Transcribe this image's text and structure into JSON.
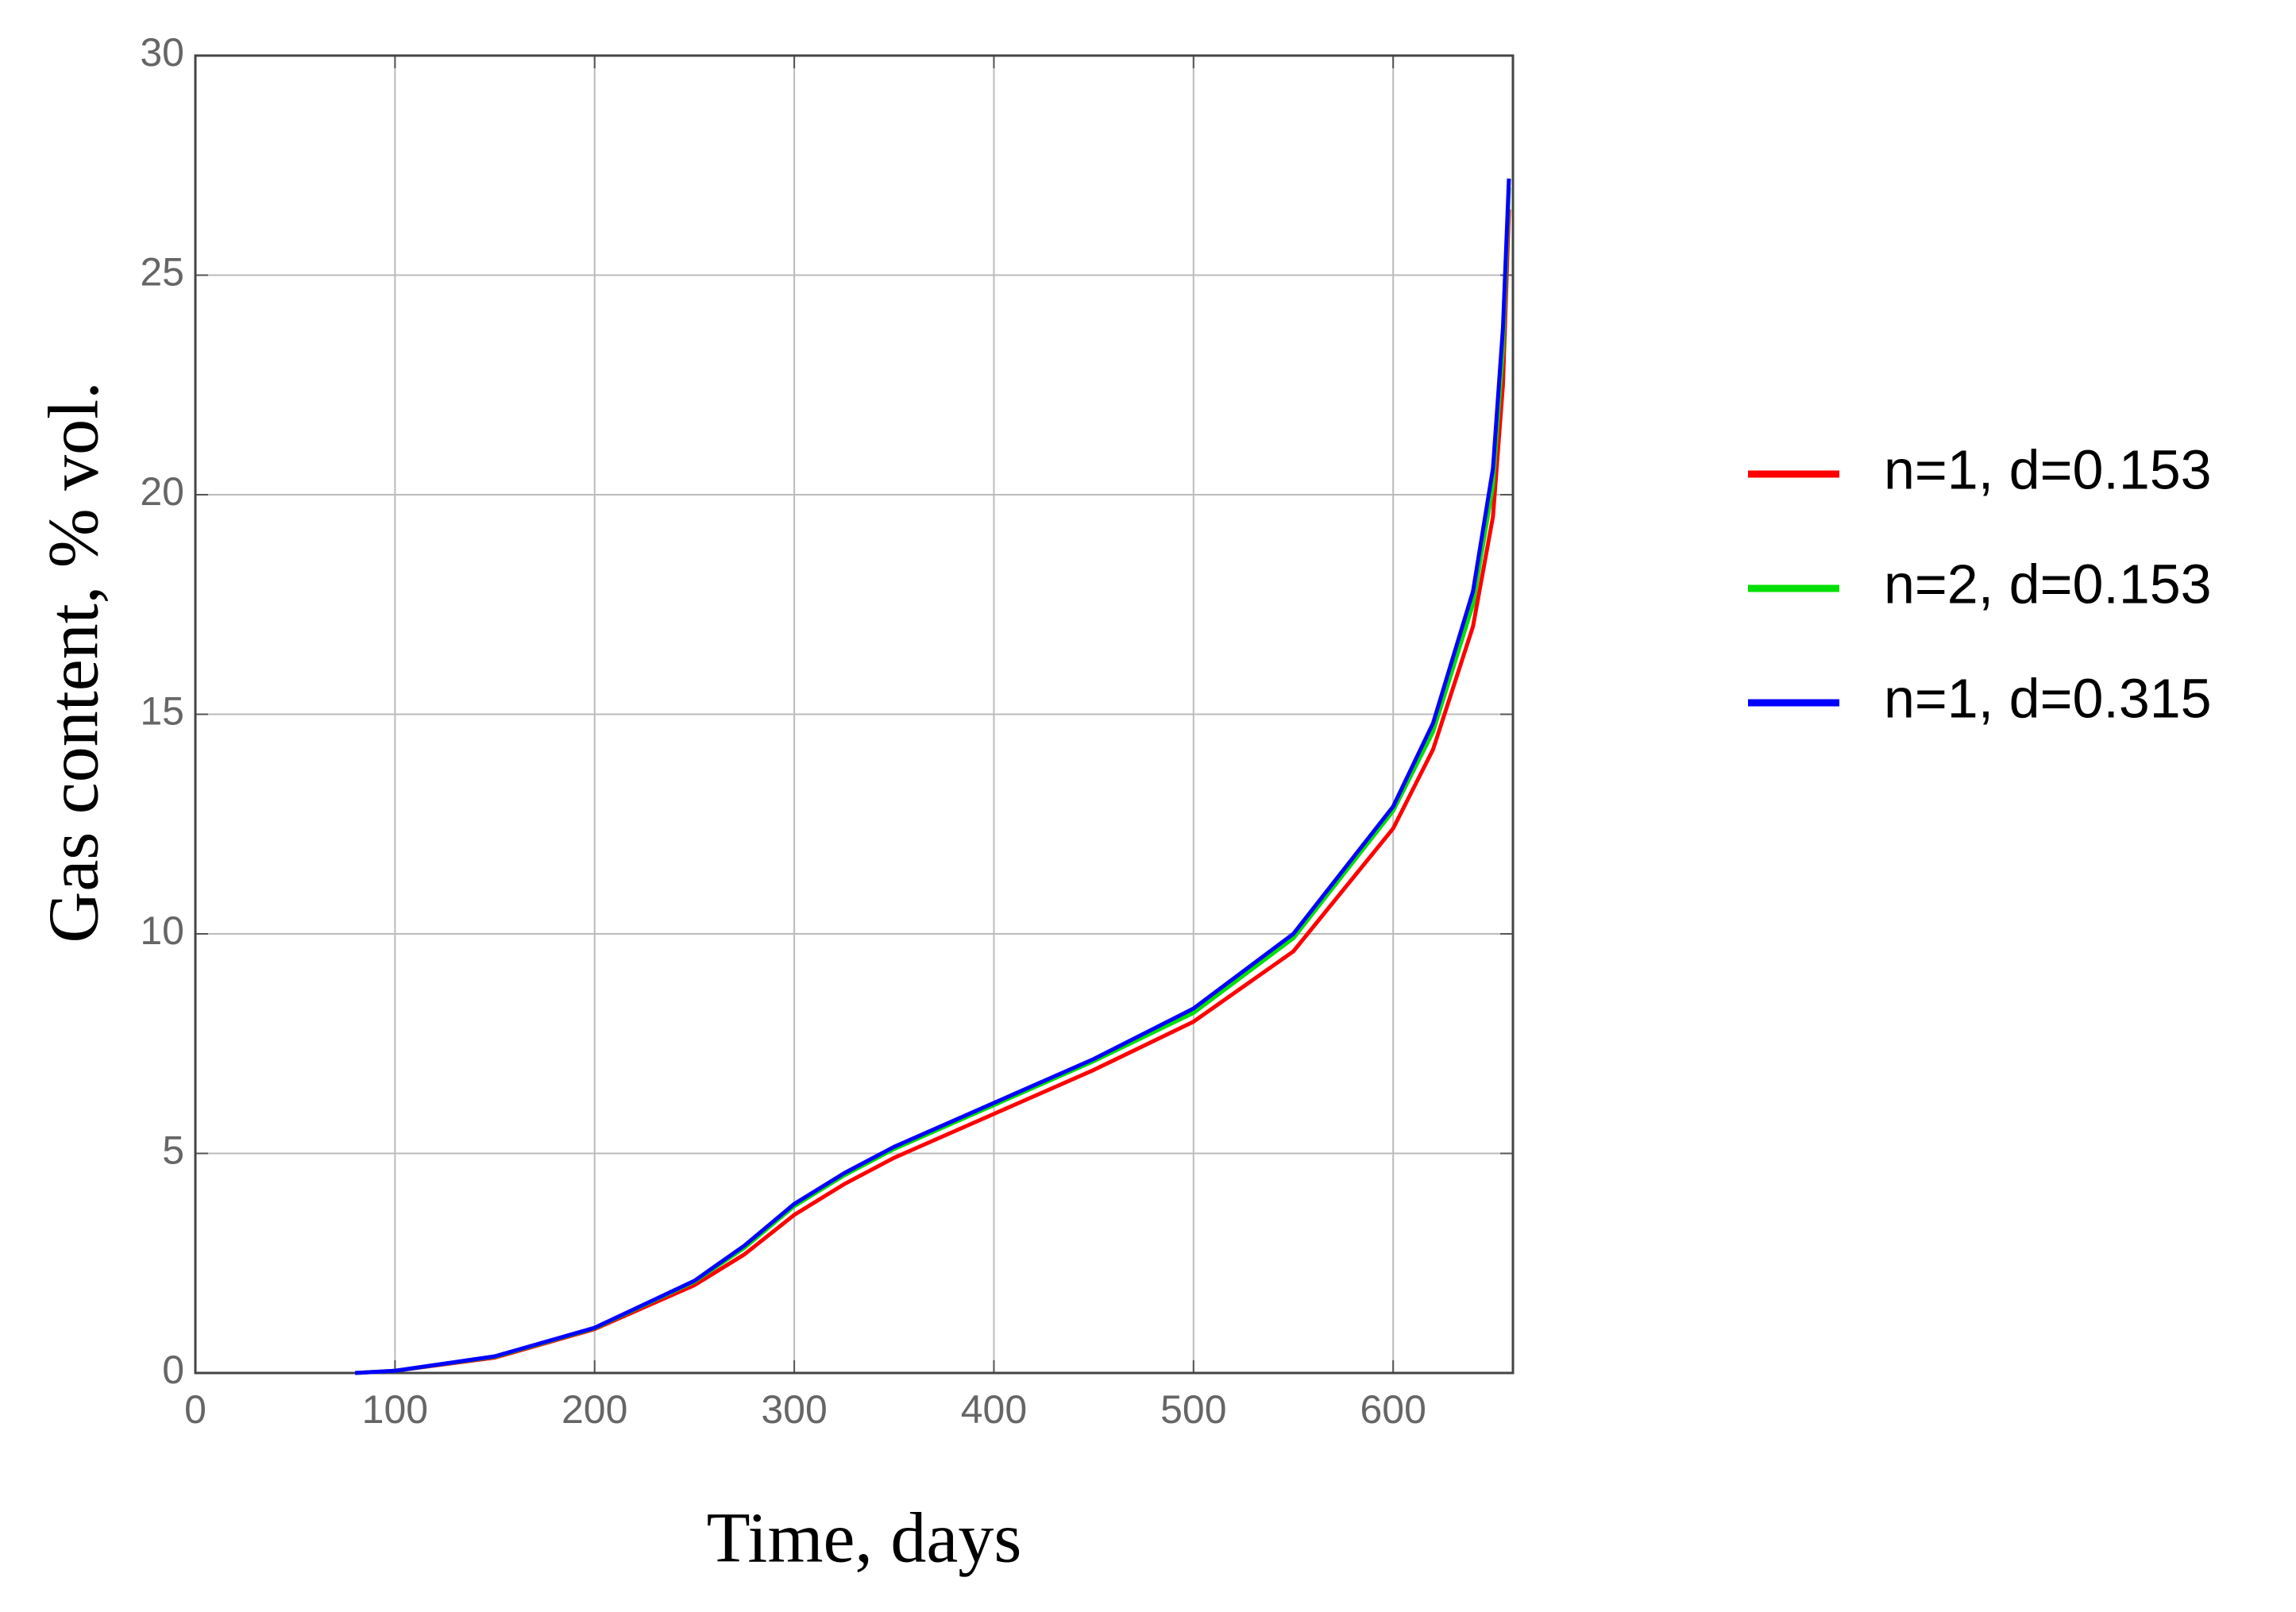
{
  "chart_data": {
    "type": "line",
    "x_label": "Time, days",
    "y_label": "Gas content, % vol.",
    "x": [
      80,
      100,
      150,
      200,
      250,
      275,
      300,
      325,
      350,
      400,
      450,
      500,
      550,
      600,
      620,
      640,
      650,
      655,
      658
    ],
    "series": [
      {
        "name": "n=1, d=0.153",
        "color": "#ff0000",
        "values": [
          0,
          0.05,
          0.35,
          1.0,
          2.0,
          2.7,
          3.6,
          4.3,
          4.9,
          5.9,
          6.9,
          8.0,
          9.6,
          12.4,
          14.2,
          17.0,
          19.5,
          22.5,
          26.5
        ]
      },
      {
        "name": "n=2, d=0.153",
        "color": "#00e000",
        "values": [
          0,
          0.05,
          0.37,
          1.02,
          2.08,
          2.85,
          3.8,
          4.5,
          5.1,
          6.1,
          7.1,
          8.2,
          9.9,
          12.8,
          14.6,
          17.5,
          20.2,
          23.3,
          27.0
        ]
      },
      {
        "name": "n=1, d=0.315",
        "color": "#0000ff",
        "values": [
          0,
          0.05,
          0.38,
          1.03,
          2.1,
          2.9,
          3.85,
          4.55,
          5.15,
          6.15,
          7.15,
          8.3,
          10.0,
          12.9,
          14.8,
          17.8,
          20.6,
          23.8,
          27.2
        ]
      }
    ],
    "xlim": [
      0,
      660
    ],
    "xticks": [
      0,
      100,
      200,
      300,
      400,
      500,
      600
    ],
    "ylim": [
      0,
      30
    ],
    "yticks": [
      0,
      5,
      10,
      15,
      20,
      25,
      30
    ],
    "grid": true,
    "legend": "right"
  }
}
